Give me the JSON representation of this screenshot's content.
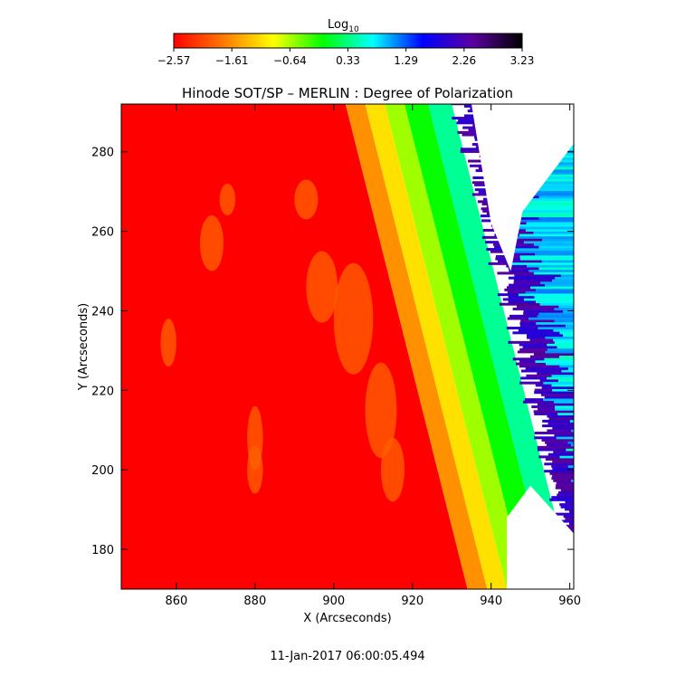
{
  "colorbar": {
    "label_main": "Log",
    "label_sub": "10",
    "ticks": [
      "−2.57",
      "−1.61",
      "−0.64",
      "0.33",
      "1.29",
      "2.26",
      "3.23"
    ],
    "range": [
      -2.57,
      3.23
    ],
    "colormap": [
      "#ff0000",
      "#ff7a00",
      "#ffff00",
      "#00ff00",
      "#00ffff",
      "#0000ff",
      "#5a00a0",
      "#000000"
    ]
  },
  "chart_data": {
    "type": "heatmap",
    "title": "Hinode SOT/SP – MERLIN : Degree of Polarization",
    "xlabel": "X (Arcseconds)",
    "ylabel": "Y (Arcseconds)",
    "xlim": [
      846,
      961
    ],
    "ylim": [
      170,
      292
    ],
    "xticks": [
      860,
      880,
      900,
      920,
      940,
      960
    ],
    "yticks": [
      180,
      200,
      220,
      240,
      260,
      280
    ],
    "limb_edge": [
      {
        "y": 292,
        "x": 903
      },
      {
        "y": 170,
        "x": 934
      }
    ],
    "gradient_bands": [
      {
        "offset": 0,
        "value": -1.6
      },
      {
        "offset": 5,
        "value": -1.1
      },
      {
        "offset": 10,
        "value": -0.6
      },
      {
        "offset": 15,
        "value": -0.1
      },
      {
        "offset": 21,
        "value": 0.4
      }
    ],
    "timestamp": "11-Jan-2017 06:00:05.494"
  }
}
